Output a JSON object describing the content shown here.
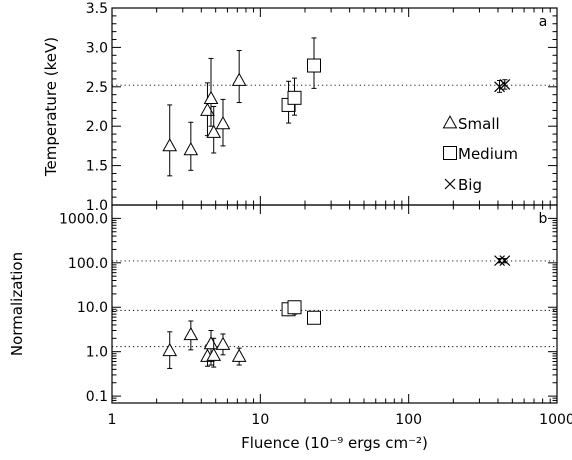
{
  "chart_data": {
    "type": "scatter",
    "x_scale": "log",
    "xlabel": "Fluence (10⁻⁹ ergs cm⁻²)",
    "xlim": [
      1,
      1000
    ],
    "x_ticks": [
      1,
      10,
      100,
      1000
    ],
    "x_tick_labels": [
      "1",
      "10",
      "100",
      "1000"
    ],
    "legend": {
      "placement": "right, top panel",
      "entries": [
        {
          "name": "Small",
          "marker": "triangle"
        },
        {
          "name": "Medium",
          "marker": "square"
        },
        {
          "name": "Big",
          "marker": "x"
        }
      ]
    },
    "panels": [
      {
        "id": "top",
        "panel_label": "a",
        "ylabel": "Temperature (keV)",
        "y_scale": "linear",
        "ylim": [
          1.0,
          3.5
        ],
        "y_ticks": [
          1.0,
          1.5,
          2.0,
          2.5,
          3.0,
          3.5
        ],
        "y_tick_labels": [
          "1.0",
          "1.5",
          "2.0",
          "2.5",
          "3.0",
          "3.5"
        ],
        "reference_lines": [
          2.52
        ],
        "series": [
          {
            "name": "Small",
            "marker": "triangle",
            "points": [
              {
                "x": 2.45,
                "y": 1.75,
                "lo": 1.37,
                "hi": 2.27
              },
              {
                "x": 3.4,
                "y": 1.7,
                "lo": 1.44,
                "hi": 2.05
              },
              {
                "x": 4.4,
                "y": 2.2,
                "lo": 1.88,
                "hi": 2.55
              },
              {
                "x": 4.65,
                "y": 2.35,
                "lo": 2.0,
                "hi": 2.86
              },
              {
                "x": 4.85,
                "y": 1.92,
                "lo": 1.66,
                "hi": 2.25
              },
              {
                "x": 5.6,
                "y": 2.03,
                "lo": 1.75,
                "hi": 2.34
              },
              {
                "x": 7.2,
                "y": 2.58,
                "lo": 2.3,
                "hi": 2.96
              }
            ]
          },
          {
            "name": "Medium",
            "marker": "square",
            "points": [
              {
                "x": 15.5,
                "y": 2.27,
                "lo": 2.04,
                "hi": 2.57
              },
              {
                "x": 17.0,
                "y": 2.36,
                "lo": 2.14,
                "hi": 2.61
              },
              {
                "x": 23.0,
                "y": 2.77,
                "lo": 2.48,
                "hi": 3.12
              }
            ]
          },
          {
            "name": "Big",
            "marker": "x",
            "points": [
              {
                "x": 410,
                "y": 2.5,
                "lo": 2.43,
                "hi": 2.58
              },
              {
                "x": 445,
                "y": 2.53,
                "lo": 2.47,
                "hi": 2.59
              }
            ]
          }
        ]
      },
      {
        "id": "bottom",
        "panel_label": "b",
        "ylabel": "Normalization",
        "y_scale": "log",
        "ylim": [
          0.07,
          2000
        ],
        "y_ticks": [
          0.1,
          1,
          10,
          100,
          1000
        ],
        "y_tick_labels": [
          "0.1",
          "1.0",
          "10.0",
          "100.0",
          "1000.0"
        ],
        "reference_lines": [
          1.3,
          8.5,
          110
        ],
        "series": [
          {
            "name": "Small",
            "marker": "triangle",
            "points": [
              {
                "x": 2.45,
                "y": 1.05,
                "lo": 0.42,
                "hi": 2.8
              },
              {
                "x": 3.4,
                "y": 2.4,
                "lo": 1.1,
                "hi": 4.9
              },
              {
                "x": 4.4,
                "y": 0.78,
                "lo": 0.47,
                "hi": 1.4
              },
              {
                "x": 4.65,
                "y": 1.5,
                "lo": 0.5,
                "hi": 3.0
              },
              {
                "x": 4.85,
                "y": 0.82,
                "lo": 0.45,
                "hi": 2.0
              },
              {
                "x": 5.6,
                "y": 1.45,
                "lo": 0.85,
                "hi": 2.5
              },
              {
                "x": 7.2,
                "y": 0.78,
                "lo": 0.5,
                "hi": 1.2
              }
            ]
          },
          {
            "name": "Medium",
            "marker": "square",
            "points": [
              {
                "x": 15.5,
                "y": 9.0,
                "lo": 6.5,
                "hi": 12.0
              },
              {
                "x": 17.0,
                "y": 10.0,
                "lo": 7.0,
                "hi": 13.0
              },
              {
                "x": 23.0,
                "y": 5.8,
                "lo": 4.2,
                "hi": 8.0
              }
            ]
          },
          {
            "name": "Big",
            "marker": "x",
            "points": [
              {
                "x": 410,
                "y": 112,
                "lo": 100,
                "hi": 125
              },
              {
                "x": 445,
                "y": 112,
                "lo": 100,
                "hi": 125
              }
            ]
          }
        ]
      }
    ]
  }
}
